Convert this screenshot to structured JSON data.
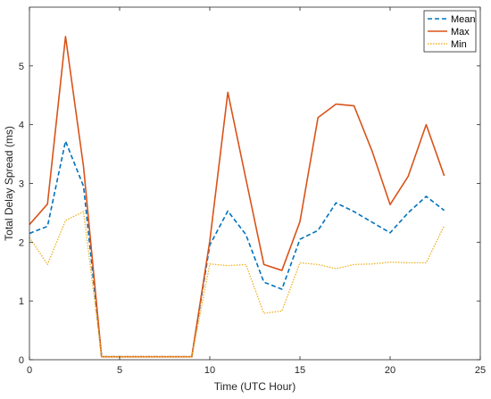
{
  "chart_data": {
    "type": "line",
    "xlabel": "Time (UTC Hour)",
    "ylabel": "Total Delay Spread (ms)",
    "xlim": [
      0,
      25
    ],
    "ylim": [
      0,
      6
    ],
    "xticks": [
      0,
      5,
      10,
      15,
      20,
      25
    ],
    "yticks": [
      0,
      1,
      2,
      3,
      4,
      5
    ],
    "grid": false,
    "legend_position": "top-right",
    "x": [
      0,
      1,
      2,
      3,
      4,
      5,
      6,
      7,
      8,
      9,
      10,
      11,
      12,
      13,
      14,
      15,
      16,
      17,
      18,
      19,
      20,
      21,
      22,
      23
    ],
    "series": [
      {
        "name": "Mean",
        "color": "#0072BD",
        "style": "dashed",
        "values": [
          2.15,
          2.27,
          3.72,
          2.95,
          0.05,
          0.05,
          0.05,
          0.05,
          0.05,
          0.05,
          1.95,
          2.53,
          2.13,
          1.32,
          1.2,
          2.05,
          2.2,
          2.67,
          2.52,
          2.34,
          2.16,
          2.5,
          2.78,
          2.54
        ]
      },
      {
        "name": "Max",
        "color": "#D95319",
        "style": "solid",
        "values": [
          2.3,
          2.65,
          5.5,
          3.28,
          0.05,
          0.05,
          0.05,
          0.05,
          0.05,
          0.05,
          2.02,
          4.55,
          3.08,
          1.62,
          1.52,
          2.35,
          4.12,
          4.35,
          4.32,
          3.55,
          2.64,
          3.12,
          4.0,
          3.13
        ]
      },
      {
        "name": "Min",
        "color": "#EDB120",
        "style": "dotted",
        "values": [
          2.08,
          1.62,
          2.37,
          2.52,
          0.05,
          0.05,
          0.05,
          0.05,
          0.05,
          0.05,
          1.63,
          1.6,
          1.62,
          0.79,
          0.83,
          1.65,
          1.62,
          1.55,
          1.62,
          1.63,
          1.66,
          1.65,
          1.65,
          2.28
        ]
      }
    ]
  }
}
